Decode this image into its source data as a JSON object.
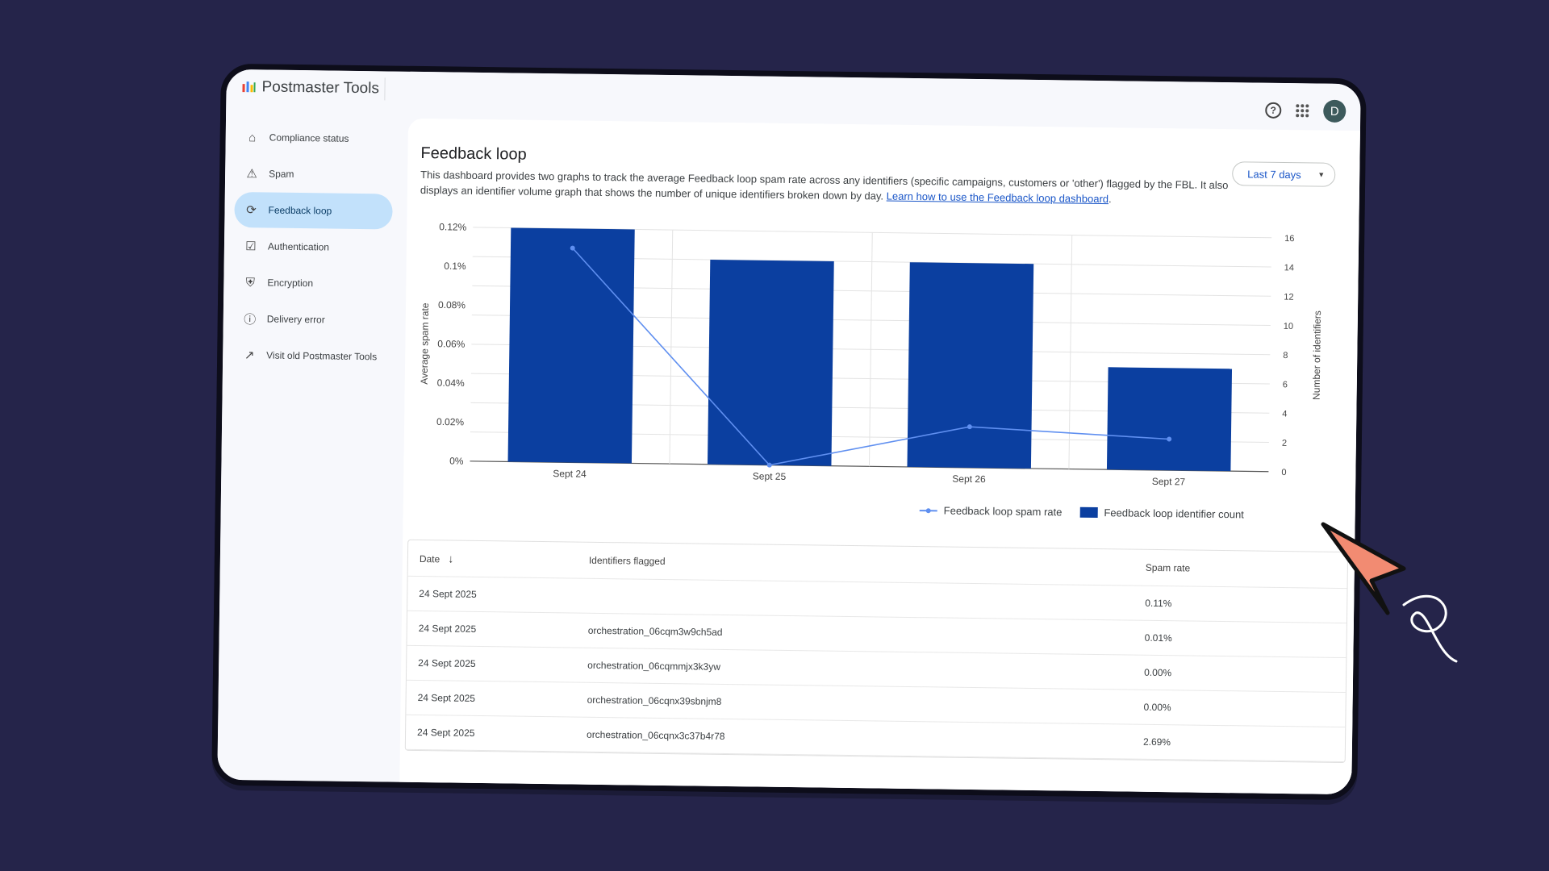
{
  "app": {
    "title": "Postmaster Tools",
    "avatar_letter": "D"
  },
  "sidebar": {
    "items": [
      {
        "label": "Compliance status",
        "icon": "home-icon",
        "active": false
      },
      {
        "label": "Spam",
        "icon": "warning-icon",
        "active": false
      },
      {
        "label": "Feedback loop",
        "icon": "sync-icon",
        "active": true
      },
      {
        "label": "Authentication",
        "icon": "checklist-icon",
        "active": false
      },
      {
        "label": "Encryption",
        "icon": "shield-icon",
        "active": false
      },
      {
        "label": "Delivery error",
        "icon": "error-icon",
        "active": false
      },
      {
        "label": "Visit old Postmaster Tools",
        "icon": "external-link-icon",
        "active": false
      }
    ]
  },
  "page": {
    "title": "Feedback loop",
    "description": "This dashboard provides two graphs to track the average Feedback loop spam rate across any identifiers (specific campaigns, customers or 'other') flagged by the FBL. It also displays an identifier volume graph that shows the number of unique identifiers broken down by day.",
    "link_text": "Learn how to use the Feedback loop dashboard",
    "range_label": "Last 7 days"
  },
  "chart_data": {
    "type": "bar",
    "categories": [
      "Sept 24",
      "Sept 25",
      "Sept 26",
      "Sept 27"
    ],
    "series": [
      {
        "name": "Feedback loop identifier count",
        "type": "bar",
        "axis": "right",
        "values": [
          16,
          14,
          14,
          7
        ]
      },
      {
        "name": "Feedback loop spam rate",
        "type": "line",
        "axis": "left",
        "values": [
          0.11,
          0.0,
          0.021,
          0.016
        ]
      }
    ],
    "ylabel_left": "Average spam rate",
    "ylabel_right": "Number of identifiers",
    "yticks_left": [
      "0%",
      "0.02%",
      "0.04%",
      "0.06%",
      "0.08%",
      "0.1%",
      "0.12%"
    ],
    "yticks_right": [
      "0",
      "2",
      "4",
      "6",
      "8",
      "10",
      "12",
      "14",
      "16"
    ],
    "ylim_left": [
      0,
      0.12
    ],
    "ylim_right": [
      0,
      16
    ],
    "legend": "bottom-right",
    "colors": {
      "bar": "#0b3fa0",
      "line": "#5f8ff0"
    }
  },
  "table": {
    "headers": {
      "date": "Date",
      "identifiers": "Identifiers flagged",
      "spam_rate": "Spam rate"
    },
    "rows": [
      {
        "date": "24 Sept 2025",
        "identifier": "",
        "rate": "0.11%"
      },
      {
        "date": "24 Sept 2025",
        "identifier": "orchestration_06cqm3w9ch5ad",
        "rate": "0.01%"
      },
      {
        "date": "24 Sept 2025",
        "identifier": "orchestration_06cqmmjx3k3yw",
        "rate": "0.00%"
      },
      {
        "date": "24 Sept 2025",
        "identifier": "orchestration_06cqnx39sbnjm8",
        "rate": "0.00%"
      },
      {
        "date": "24 Sept 2025",
        "identifier": "orchestration_06cqnx3c37b4r78",
        "rate": "2.69%"
      }
    ]
  }
}
